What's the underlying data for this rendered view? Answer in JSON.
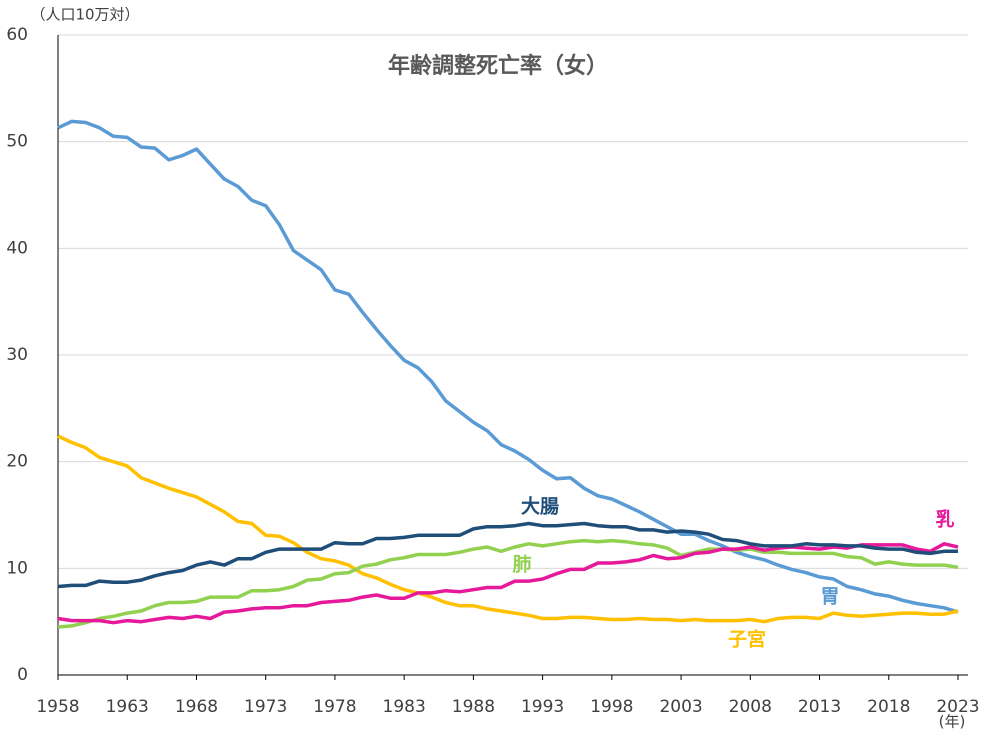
{
  "chart_data": {
    "type": "line",
    "title": "年齢調整死亡率（女）",
    "y_axis_label": "（人口10万対）",
    "x_axis_label": "(年)",
    "x": [
      1958,
      1959,
      1960,
      1961,
      1962,
      1963,
      1964,
      1965,
      1966,
      1967,
      1968,
      1969,
      1970,
      1971,
      1972,
      1973,
      1974,
      1975,
      1976,
      1977,
      1978,
      1979,
      1980,
      1981,
      1982,
      1983,
      1984,
      1985,
      1986,
      1987,
      1988,
      1989,
      1990,
      1991,
      1992,
      1993,
      1994,
      1995,
      1996,
      1997,
      1998,
      1999,
      2000,
      2001,
      2002,
      2003,
      2004,
      2005,
      2006,
      2007,
      2008,
      2009,
      2010,
      2011,
      2012,
      2013,
      2014,
      2015,
      2016,
      2017,
      2018,
      2019,
      2020,
      2021,
      2022,
      2023
    ],
    "series": [
      {
        "name": "胃",
        "color": "#5b9bd5",
        "values": [
          51.3,
          51.9,
          51.8,
          51.3,
          50.5,
          50.4,
          49.5,
          49.4,
          48.3,
          48.7,
          49.3,
          47.9,
          46.5,
          45.8,
          44.5,
          44.0,
          42.2,
          39.8,
          38.9,
          38.0,
          36.1,
          35.7,
          34.0,
          32.4,
          30.9,
          29.5,
          28.8,
          27.5,
          25.7,
          24.7,
          23.7,
          22.9,
          21.6,
          21.0,
          20.2,
          19.2,
          18.4,
          18.5,
          17.5,
          16.8,
          16.5,
          15.9,
          15.3,
          14.6,
          13.9,
          13.2,
          13.2,
          12.6,
          12.1,
          11.5,
          11.1,
          10.8,
          10.3,
          9.9,
          9.6,
          9.2,
          9.0,
          8.3,
          8.0,
          7.6,
          7.4,
          7.0,
          6.7,
          6.5,
          6.3,
          5.9
        ]
      },
      {
        "name": "子宮",
        "color": "#ffc000",
        "values": [
          22.4,
          21.8,
          21.3,
          20.4,
          20.0,
          19.6,
          18.5,
          18.0,
          17.5,
          17.1,
          16.7,
          16.0,
          15.3,
          14.4,
          14.2,
          13.1,
          13.0,
          12.4,
          11.5,
          10.9,
          10.7,
          10.3,
          9.5,
          9.1,
          8.5,
          8.0,
          7.7,
          7.3,
          6.8,
          6.5,
          6.5,
          6.2,
          6.0,
          5.8,
          5.6,
          5.3,
          5.3,
          5.4,
          5.4,
          5.3,
          5.2,
          5.2,
          5.3,
          5.2,
          5.2,
          5.1,
          5.2,
          5.1,
          5.1,
          5.1,
          5.2,
          5.0,
          5.3,
          5.4,
          5.4,
          5.3,
          5.8,
          5.6,
          5.5,
          5.6,
          5.7,
          5.8,
          5.8,
          5.7,
          5.7,
          6.0
        ]
      },
      {
        "name": "肺",
        "color": "#92d050",
        "values": [
          4.5,
          4.6,
          4.9,
          5.3,
          5.5,
          5.8,
          6.0,
          6.5,
          6.8,
          6.8,
          6.9,
          7.3,
          7.3,
          7.3,
          7.9,
          7.9,
          8.0,
          8.3,
          8.9,
          9.0,
          9.5,
          9.6,
          10.2,
          10.4,
          10.8,
          11.0,
          11.3,
          11.3,
          11.3,
          11.5,
          11.8,
          12.0,
          11.6,
          12.0,
          12.3,
          12.1,
          12.3,
          12.5,
          12.6,
          12.5,
          12.6,
          12.5,
          12.3,
          12.2,
          11.9,
          11.2,
          11.5,
          11.8,
          11.8,
          11.7,
          11.8,
          11.5,
          11.5,
          11.4,
          11.4,
          11.4,
          11.4,
          11.1,
          11.0,
          10.4,
          10.6,
          10.4,
          10.3,
          10.3,
          10.3,
          10.1
        ]
      },
      {
        "name": "乳",
        "color": "#e6199b",
        "values": [
          5.3,
          5.1,
          5.1,
          5.1,
          4.9,
          5.1,
          5.0,
          5.2,
          5.4,
          5.3,
          5.5,
          5.3,
          5.9,
          6.0,
          6.2,
          6.3,
          6.3,
          6.5,
          6.5,
          6.8,
          6.9,
          7.0,
          7.3,
          7.5,
          7.2,
          7.2,
          7.7,
          7.7,
          7.9,
          7.8,
          8.0,
          8.2,
          8.2,
          8.8,
          8.8,
          9.0,
          9.5,
          9.9,
          9.9,
          10.5,
          10.5,
          10.6,
          10.8,
          11.2,
          10.9,
          11.0,
          11.4,
          11.5,
          11.8,
          11.8,
          12.0,
          11.7,
          11.9,
          12.0,
          11.9,
          11.8,
          12.0,
          11.9,
          12.2,
          12.2,
          12.2,
          12.2,
          11.8,
          11.6,
          12.3,
          12.0
        ]
      },
      {
        "name": "大腸",
        "color": "#1f4e79",
        "values": [
          8.3,
          8.4,
          8.4,
          8.8,
          8.7,
          8.7,
          8.9,
          9.3,
          9.6,
          9.8,
          10.3,
          10.6,
          10.3,
          10.9,
          10.9,
          11.5,
          11.8,
          11.8,
          11.8,
          11.8,
          12.4,
          12.3,
          12.3,
          12.8,
          12.8,
          12.9,
          13.1,
          13.1,
          13.1,
          13.1,
          13.7,
          13.9,
          13.9,
          14.0,
          14.2,
          14.0,
          14.0,
          14.1,
          14.2,
          14.0,
          13.9,
          13.9,
          13.6,
          13.6,
          13.4,
          13.5,
          13.4,
          13.2,
          12.7,
          12.6,
          12.3,
          12.1,
          12.1,
          12.1,
          12.3,
          12.2,
          12.2,
          12.1,
          12.1,
          11.9,
          11.8,
          11.8,
          11.5,
          11.4,
          11.6,
          11.6
        ]
      }
    ],
    "xlim": [
      1958,
      2023
    ],
    "xticks": [
      1958,
      1963,
      1968,
      1973,
      1978,
      1983,
      1988,
      1993,
      1998,
      2003,
      2008,
      2013,
      2018,
      2023
    ],
    "ylim": [
      0,
      60
    ],
    "yticks": [
      0,
      10,
      20,
      30,
      40,
      50,
      60
    ],
    "grid": true
  }
}
